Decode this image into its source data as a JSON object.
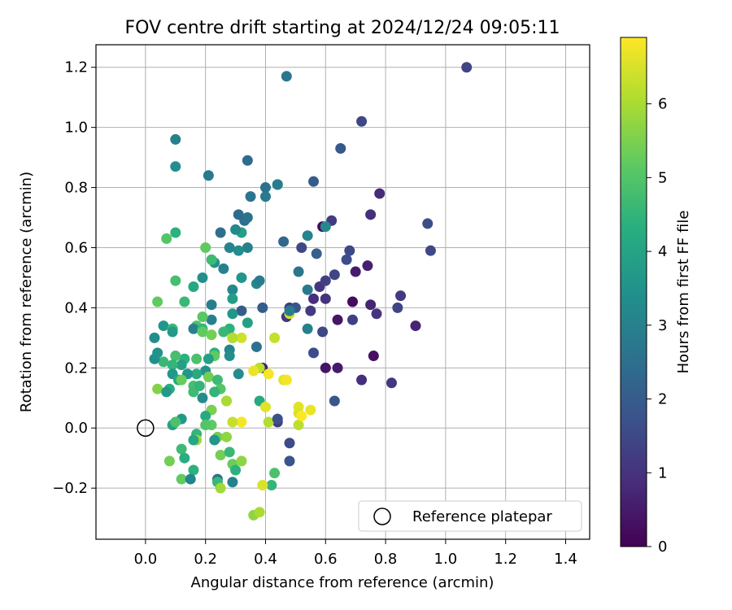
{
  "chart_data": {
    "type": "scatter",
    "title": "FOV centre drift starting at 2024/12/24 09:05:11",
    "xlabel": "Angular distance from reference (arcmin)",
    "ylabel": "Rotation from reference (arcmin)",
    "xlim": [
      -0.165,
      1.48
    ],
    "ylim": [
      -0.37,
      1.275
    ],
    "xticks": [
      0.0,
      0.2,
      0.4,
      0.6,
      0.8,
      1.0,
      1.2,
      1.4
    ],
    "xtick_labels": [
      "0.0",
      "0.2",
      "0.4",
      "0.6",
      "0.8",
      "1.0",
      "1.2",
      "1.4"
    ],
    "yticks": [
      -0.2,
      0.0,
      0.2,
      0.4,
      0.6,
      0.8,
      1.0,
      1.2
    ],
    "ytick_labels": [
      "−0.2",
      "0.0",
      "0.2",
      "0.4",
      "0.6",
      "0.8",
      "1.0",
      "1.2"
    ],
    "grid": true,
    "legend": {
      "placement": "lower-right",
      "entries": [
        "Reference platepar"
      ]
    },
    "reference_point": {
      "x": 0.0,
      "y": 0.0,
      "label": "Reference platepar"
    },
    "colorbar": {
      "label": "Hours from first FF file",
      "colormap": "viridis",
      "range": [
        0,
        6.9
      ],
      "ticks": [
        0,
        1,
        2,
        3,
        4,
        5,
        6
      ],
      "tick_labels": [
        "0",
        "1",
        "2",
        "3",
        "4",
        "5",
        "6"
      ]
    },
    "points": [
      [
        0.59,
        0.67,
        0.2
      ],
      [
        0.76,
        0.24,
        0.3
      ],
      [
        0.69,
        0.42,
        0.2
      ],
      [
        0.7,
        0.52,
        0.5
      ],
      [
        0.74,
        0.54,
        0.6
      ],
      [
        0.9,
        0.34,
        0.7
      ],
      [
        0.64,
        0.36,
        0.4
      ],
      [
        0.6,
        0.2,
        0.4
      ],
      [
        0.64,
        0.2,
        0.5
      ],
      [
        0.78,
        0.78,
        0.8
      ],
      [
        0.75,
        0.71,
        0.9
      ],
      [
        0.77,
        0.38,
        1.0
      ],
      [
        0.75,
        0.41,
        0.7
      ],
      [
        0.72,
        0.16,
        0.9
      ],
      [
        0.82,
        0.15,
        1.1
      ],
      [
        0.85,
        0.44,
        1.2
      ],
      [
        0.84,
        0.4,
        1.4
      ],
      [
        0.95,
        0.59,
        1.5
      ],
      [
        0.94,
        0.68,
        1.6
      ],
      [
        1.07,
        1.2,
        1.4
      ],
      [
        0.72,
        1.02,
        1.5
      ],
      [
        0.62,
        0.69,
        1.2
      ],
      [
        0.58,
        0.47,
        1.1
      ],
      [
        0.6,
        0.43,
        1.0
      ],
      [
        0.55,
        0.39,
        1.2
      ],
      [
        0.48,
        0.4,
        1.3
      ],
      [
        0.47,
        0.37,
        1.1
      ],
      [
        0.56,
        0.43,
        0.9
      ],
      [
        0.52,
        0.6,
        1.5
      ],
      [
        0.69,
        0.36,
        1.3
      ],
      [
        0.68,
        0.59,
        1.5
      ],
      [
        0.67,
        0.56,
        1.6
      ],
      [
        0.63,
        0.51,
        1.4
      ],
      [
        0.6,
        0.49,
        1.3
      ],
      [
        0.65,
        0.93,
        1.9
      ],
      [
        0.56,
        0.82,
        2.0
      ],
      [
        0.57,
        0.58,
        2.1
      ],
      [
        0.56,
        0.25,
        1.6
      ],
      [
        0.59,
        0.32,
        1.5
      ],
      [
        0.63,
        0.09,
        1.8
      ],
      [
        0.48,
        -0.05,
        1.6
      ],
      [
        0.48,
        -0.11,
        1.8
      ],
      [
        0.44,
        0.02,
        1.2
      ],
      [
        0.39,
        0.2,
        0.6
      ],
      [
        0.39,
        0.4,
        2.0
      ],
      [
        0.34,
        0.89,
        2.4
      ],
      [
        0.4,
        0.8,
        2.6
      ],
      [
        0.44,
        0.81,
        2.8
      ],
      [
        0.47,
        1.17,
        2.7
      ],
      [
        0.4,
        0.77,
        2.8
      ],
      [
        0.35,
        0.77,
        2.7
      ],
      [
        0.33,
        0.69,
        2.5
      ],
      [
        0.31,
        0.71,
        2.4
      ],
      [
        0.34,
        0.7,
        2.6
      ],
      [
        0.25,
        0.65,
        2.5
      ],
      [
        0.32,
        0.65,
        3.9
      ],
      [
        0.3,
        0.66,
        3.2
      ],
      [
        0.34,
        0.6,
        3.0
      ],
      [
        0.28,
        0.6,
        3.1
      ],
      [
        0.31,
        0.59,
        3.3
      ],
      [
        0.26,
        0.53,
        3.0
      ],
      [
        0.23,
        0.55,
        3.5
      ],
      [
        0.19,
        0.5,
        3.4
      ],
      [
        0.21,
        0.84,
        2.8
      ],
      [
        0.1,
        0.96,
        3.0
      ],
      [
        0.1,
        0.87,
        3.4
      ],
      [
        0.1,
        0.65,
        4.4
      ],
      [
        0.07,
        0.63,
        5.0
      ],
      [
        0.2,
        0.6,
        5.2
      ],
      [
        0.22,
        0.56,
        4.7
      ],
      [
        0.1,
        0.49,
        4.8
      ],
      [
        0.13,
        0.42,
        4.6
      ],
      [
        0.16,
        0.47,
        4.1
      ],
      [
        0.04,
        0.42,
        5.2
      ],
      [
        0.29,
        0.46,
        3.2
      ],
      [
        0.29,
        0.43,
        3.8
      ],
      [
        0.32,
        0.5,
        3.6
      ],
      [
        0.37,
        0.48,
        3.2
      ],
      [
        0.38,
        0.49,
        2.9
      ],
      [
        0.46,
        0.62,
        2.3
      ],
      [
        0.51,
        0.52,
        2.7
      ],
      [
        0.54,
        0.46,
        2.8
      ],
      [
        0.54,
        0.33,
        3.0
      ],
      [
        0.54,
        0.64,
        3.1
      ],
      [
        0.6,
        0.67,
        3.2
      ],
      [
        0.5,
        0.4,
        1.8
      ],
      [
        0.44,
        0.81,
        2.9
      ],
      [
        0.32,
        0.39,
        2.0
      ],
      [
        0.29,
        0.38,
        3.6
      ],
      [
        0.29,
        0.3,
        2.7
      ],
      [
        0.34,
        0.35,
        3.9
      ],
      [
        0.37,
        0.27,
        2.6
      ],
      [
        0.31,
        0.18,
        3.3
      ],
      [
        0.28,
        0.33,
        4.4
      ],
      [
        0.26,
        0.32,
        4.6
      ],
      [
        0.28,
        0.26,
        3.1
      ],
      [
        0.28,
        0.24,
        3.4
      ],
      [
        0.22,
        0.36,
        3.0
      ],
      [
        0.22,
        0.41,
        2.9
      ],
      [
        0.19,
        0.37,
        5.1
      ],
      [
        0.17,
        0.34,
        4.9
      ],
      [
        0.16,
        0.33,
        3.0
      ],
      [
        0.19,
        0.33,
        4.5
      ],
      [
        0.17,
        0.23,
        4.9
      ],
      [
        0.19,
        0.32,
        5.2
      ],
      [
        0.22,
        0.31,
        5.4
      ],
      [
        0.23,
        0.25,
        4.4
      ],
      [
        0.23,
        0.24,
        5.2
      ],
      [
        0.21,
        0.23,
        3.9
      ],
      [
        0.2,
        0.19,
        3.5
      ],
      [
        0.17,
        0.18,
        4.2
      ],
      [
        0.14,
        0.18,
        3.6
      ],
      [
        0.13,
        0.23,
        4.4
      ],
      [
        0.12,
        0.21,
        3.9
      ],
      [
        0.1,
        0.24,
        4.8
      ],
      [
        0.09,
        0.21,
        4.5
      ],
      [
        0.06,
        0.22,
        4.6
      ],
      [
        0.03,
        0.23,
        3.4
      ],
      [
        0.03,
        0.3,
        3.3
      ],
      [
        0.06,
        0.34,
        3.6
      ],
      [
        0.09,
        0.33,
        4.6
      ],
      [
        0.09,
        0.32,
        3.7
      ],
      [
        0.04,
        0.25,
        3.5
      ],
      [
        0.09,
        0.18,
        3.6
      ],
      [
        0.11,
        0.16,
        4.1
      ],
      [
        0.08,
        0.13,
        4.3
      ],
      [
        0.04,
        0.13,
        5.6
      ],
      [
        0.07,
        0.12,
        3.7
      ],
      [
        0.12,
        0.16,
        5.3
      ],
      [
        0.16,
        0.14,
        4.8
      ],
      [
        0.16,
        0.12,
        4.7
      ],
      [
        0.19,
        0.1,
        3.3
      ],
      [
        0.18,
        0.14,
        4.5
      ],
      [
        0.21,
        0.17,
        5.4
      ],
      [
        0.24,
        0.16,
        4.7
      ],
      [
        0.25,
        0.13,
        5.0
      ],
      [
        0.23,
        0.12,
        4.5
      ],
      [
        0.22,
        0.06,
        5.5
      ],
      [
        0.27,
        0.09,
        5.6
      ],
      [
        0.24,
        -0.03,
        5.4
      ],
      [
        0.23,
        -0.04,
        3.6
      ],
      [
        0.2,
        0.04,
        4.2
      ],
      [
        0.22,
        0.01,
        5.2
      ],
      [
        0.2,
        0.01,
        5.0
      ],
      [
        0.17,
        -0.02,
        4.5
      ],
      [
        0.17,
        -0.04,
        5.9
      ],
      [
        0.16,
        -0.04,
        4.1
      ],
      [
        0.12,
        0.03,
        3.7
      ],
      [
        0.09,
        0.01,
        3.9
      ],
      [
        0.1,
        0.02,
        4.9
      ],
      [
        0.12,
        -0.07,
        4.7
      ],
      [
        0.13,
        -0.1,
        4.3
      ],
      [
        0.08,
        -0.11,
        5.4
      ],
      [
        0.16,
        -0.14,
        4.4
      ],
      [
        0.12,
        -0.17,
        5.2
      ],
      [
        0.15,
        -0.17,
        3.1
      ],
      [
        0.24,
        -0.17,
        2.6
      ],
      [
        0.25,
        -0.09,
        5.4
      ],
      [
        0.27,
        -0.03,
        5.7
      ],
      [
        0.28,
        -0.08,
        4.6
      ],
      [
        0.29,
        -0.12,
        5.3
      ],
      [
        0.3,
        -0.14,
        4.4
      ],
      [
        0.32,
        -0.11,
        5.7
      ],
      [
        0.29,
        -0.18,
        3.0
      ],
      [
        0.24,
        -0.18,
        4.6
      ],
      [
        0.25,
        -0.2,
        5.9
      ],
      [
        0.36,
        -0.29,
        5.7
      ],
      [
        0.38,
        -0.28,
        6.0
      ],
      [
        0.43,
        -0.15,
        4.9
      ],
      [
        0.42,
        -0.19,
        4.5
      ],
      [
        0.39,
        -0.19,
        6.5
      ],
      [
        0.38,
        0.09,
        4.2
      ],
      [
        0.4,
        0.07,
        6.6
      ],
      [
        0.41,
        0.02,
        6.1
      ],
      [
        0.43,
        0.3,
        6.3
      ],
      [
        0.46,
        0.16,
        6.6
      ],
      [
        0.41,
        0.18,
        6.8
      ],
      [
        0.38,
        0.2,
        6.2
      ],
      [
        0.32,
        0.3,
        6.4
      ],
      [
        0.29,
        0.3,
        6.1
      ],
      [
        0.32,
        0.02,
        6.8
      ],
      [
        0.29,
        0.02,
        6.3
      ],
      [
        0.27,
        0.09,
        6.0
      ],
      [
        0.36,
        0.19,
        6.7
      ],
      [
        0.51,
        0.07,
        6.6
      ],
      [
        0.51,
        0.05,
        6.5
      ],
      [
        0.51,
        0.01,
        6.2
      ],
      [
        0.52,
        0.04,
        6.9
      ],
      [
        0.55,
        0.06,
        6.7
      ],
      [
        0.48,
        0.38,
        6.4
      ],
      [
        0.44,
        0.03,
        1.7
      ],
      [
        0.47,
        0.16,
        6.8
      ],
      [
        0.48,
        0.39,
        2.9
      ]
    ]
  }
}
